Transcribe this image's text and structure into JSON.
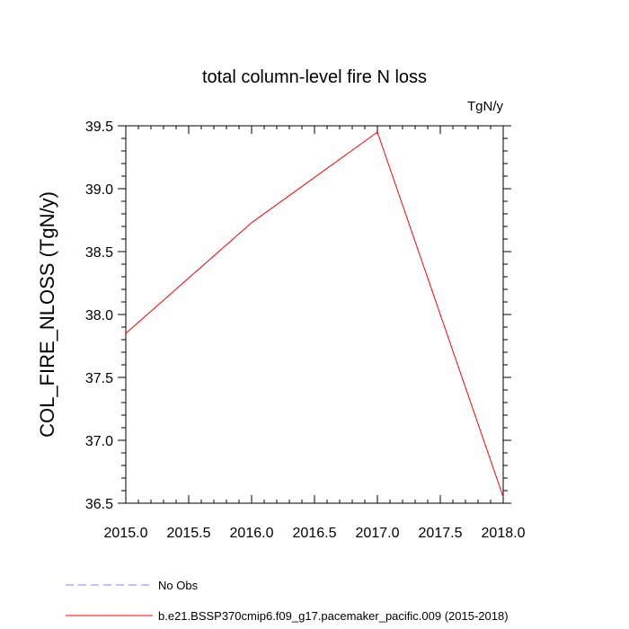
{
  "chart_data": {
    "type": "line",
    "title": "total column-level fire N loss",
    "units_label": "TgN/y",
    "xlabel": "",
    "ylabel": "COL_FIRE_NLOSS  (TgN/y)",
    "xlim": [
      2015.0,
      2018.0
    ],
    "ylim": [
      36.5,
      39.5
    ],
    "x_ticks": [
      "2015.0",
      "2015.5",
      "2016.0",
      "2016.5",
      "2017.0",
      "2017.5",
      "2018.0"
    ],
    "y_ticks": [
      "36.5",
      "37.0",
      "37.5",
      "38.0",
      "38.5",
      "39.0",
      "39.5"
    ],
    "grid": false,
    "legend_position": "bottom",
    "series": [
      {
        "name": "b.e21.BSSP370cmip6.f09_g17.pacemaker_pacific.009 (2015-2018)",
        "color": "#ff0000",
        "style": "solid",
        "x": [
          2015,
          2016,
          2017,
          2018
        ],
        "values": [
          37.85,
          38.73,
          39.45,
          36.55
        ]
      }
    ],
    "legend": [
      {
        "label": "No Obs",
        "color": "#8080ff",
        "style": "dashed"
      },
      {
        "label": "b.e21.BSSP370cmip6.f09_g17.pacemaker_pacific.009 (2015-2018)",
        "color": "#ff0000",
        "style": "solid"
      }
    ]
  }
}
